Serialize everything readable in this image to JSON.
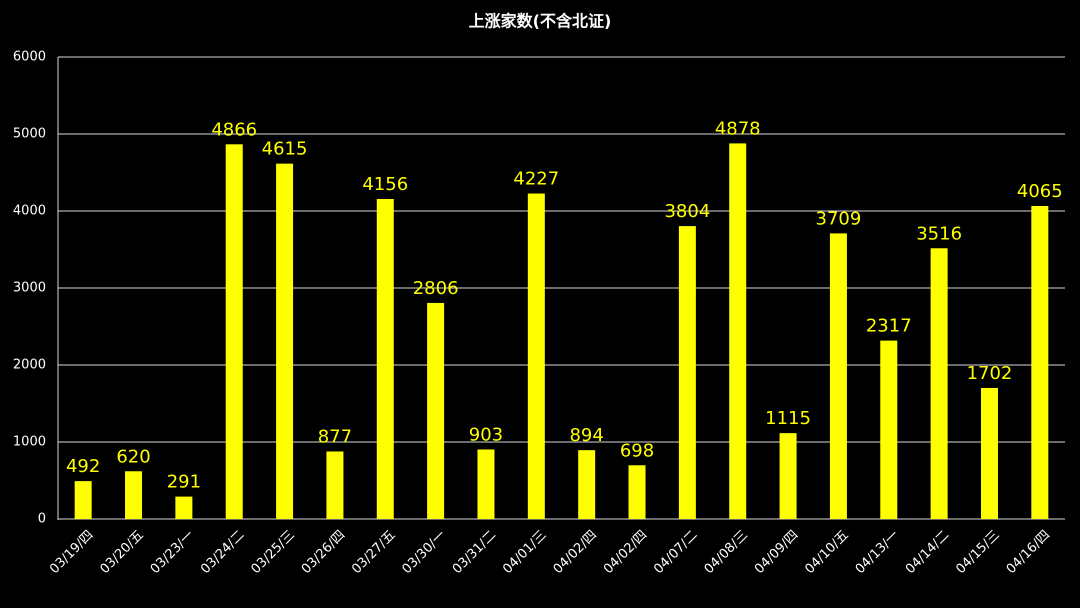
{
  "chart_data": {
    "type": "bar",
    "title": "上涨家数(不含北证)",
    "categories": [
      "03/19/四",
      "03/20/五",
      "03/23/一",
      "03/24/二",
      "03/25/三",
      "03/26/四",
      "03/27/五",
      "03/30/一",
      "03/31/二",
      "04/01/三",
      "04/02/四",
      "04/02/四",
      "04/07/二",
      "04/08/三",
      "04/09/四",
      "04/10/五",
      "04/13/一",
      "04/14/二",
      "04/15/三",
      "04/16/四"
    ],
    "values": [
      492,
      620,
      291,
      4866,
      4615,
      877,
      4156,
      2806,
      903,
      4227,
      894,
      698,
      3804,
      4878,
      1115,
      3709,
      2317,
      3516,
      1702,
      4065
    ],
    "color": "#ffff00",
    "ylim": [
      0,
      6000
    ],
    "yticks": [
      0,
      1000,
      2000,
      3000,
      4000,
      5000,
      6000
    ],
    "grid": true
  }
}
